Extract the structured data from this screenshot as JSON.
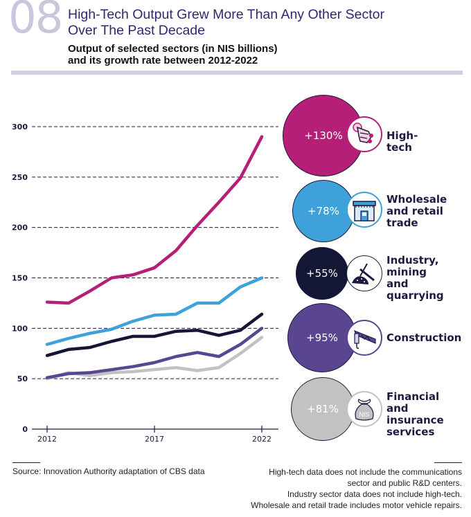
{
  "header": {
    "number": "08",
    "title_line1": "High-Tech Output Grew More Than Any Other Sector",
    "title_line2": "Over The Past Decade",
    "subtitle_line1": "Output of selected sectors (in NIS billions)",
    "subtitle_line2": "and its growth rate between 2012-2022"
  },
  "chart_data": {
    "type": "line",
    "title": "High-Tech Output Grew More Than Any Other Sector Over The Past Decade",
    "subtitle": "Output of selected sectors (in NIS billions) and its growth rate between 2012-2022",
    "xlabel": "",
    "ylabel": "NIS billions",
    "x": [
      2012,
      2013,
      2014,
      2015,
      2016,
      2017,
      2018,
      2019,
      2020,
      2021,
      2022
    ],
    "x_ticks": [
      "2012",
      "2017",
      "2022"
    ],
    "y_ticks": [
      "0",
      "50",
      "100",
      "150",
      "200",
      "250",
      "300"
    ],
    "ylim": [
      0,
      300
    ],
    "grid": "horizontal dashed",
    "series": [
      {
        "name": "High-tech",
        "color": "#b51f78",
        "growth": "+130%",
        "values": [
          126,
          125,
          137,
          150,
          153,
          160,
          177,
          202,
          225,
          249,
          290
        ]
      },
      {
        "name": "Wholesale and retail trade",
        "color": "#3ea1da",
        "growth": "+78%",
        "values": [
          84,
          90,
          95,
          99,
          107,
          113,
          114,
          125,
          125,
          141,
          150
        ]
      },
      {
        "name": "Industry, mining and quarrying",
        "color": "#131634",
        "growth": "+55%",
        "values": [
          73,
          79,
          81,
          87,
          92,
          92,
          97,
          98,
          93,
          98,
          114
        ]
      },
      {
        "name": "Construction",
        "color": "#5a4590",
        "growth": "+95%",
        "values": [
          51,
          55,
          56,
          59,
          62,
          66,
          72,
          76,
          72,
          84,
          100
        ]
      },
      {
        "name": "Financial and insurance services",
        "color": "#c2c2c2",
        "growth": "+81%",
        "values": [
          50,
          56,
          53,
          56,
          57,
          59,
          61,
          58,
          61,
          75,
          91
        ]
      }
    ]
  },
  "legend": [
    {
      "growth": "+130%",
      "label_lines": [
        "High-tech"
      ],
      "color": "#b51f78",
      "icon": "robot-hand-icon"
    },
    {
      "growth": "+78%",
      "label_lines": [
        "Wholesale",
        "and retail",
        "trade"
      ],
      "color": "#3ea1da",
      "icon": "store-icon"
    },
    {
      "growth": "+55%",
      "label_lines": [
        "Industry,",
        "mining and",
        "quarrying"
      ],
      "color": "#131634",
      "icon": "pickaxe-icon"
    },
    {
      "growth": "+95%",
      "label_lines": [
        "Construction"
      ],
      "color": "#5a4590",
      "icon": "crane-icon"
    },
    {
      "growth": "+81%",
      "label_lines": [
        "Financial and",
        "insurance",
        "services"
      ],
      "color": "#c2c2c2",
      "icon": "money-bag-icon",
      "icon_text": "NIS"
    }
  ],
  "footer": {
    "source": "Source: Innovation Authority adaptation of CBS data",
    "notes": [
      "High-tech data does not include the communications",
      "sector and public R&D centers.",
      "Industry sector data does not include high-tech.",
      "Wholesale and retail trade includes motor vehicle repairs."
    ]
  }
}
